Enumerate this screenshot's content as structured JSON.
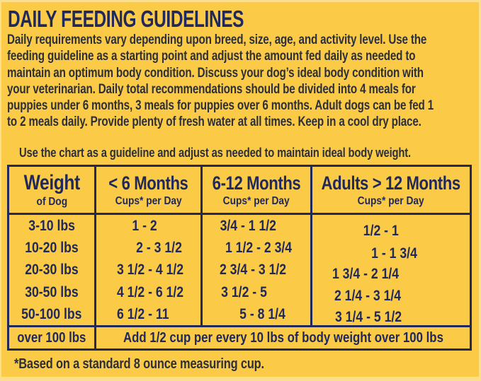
{
  "title": "DAILY FEEDING GUIDELINES",
  "intro": {
    "lines": [
      "Daily requirements vary depending upon breed, size, age, and activity level. Use the",
      "feeding guideline as a starting point and adjust the amount fed daily as needed to",
      "maintain an optimum body condition. Discuss your dog’s ideal body condition with",
      "your veterinarian. Daily total recommendations should be divided into 4 meals for",
      "puppies under 6 months, 3 meals for puppies over 6 months. Adult dogs can be fed 1",
      "to 2 meals daily. Provide plenty of fresh water at all times. Keep in a cool dry place."
    ]
  },
  "usage_note": "Use the chart as a guideline and adjust as needed to maintain ideal body weight.",
  "table": {
    "columns": [
      {
        "label": "Weight",
        "sublabel": "of Dog"
      },
      {
        "label": "< 6 Months",
        "sublabel": "Cups* per Day"
      },
      {
        "label": "6-12 Months",
        "sublabel": "Cups* per Day"
      },
      {
        "label": "Adults > 12 Months",
        "sublabel": "Cups* per Day"
      }
    ],
    "rows": [
      {
        "weight": "3-10 lbs",
        "under_6_months": "1 - 2",
        "months_6_12": "3/4 - 1 1/2",
        "adults_over_12": "1/2 - 1"
      },
      {
        "weight": "10-20 lbs",
        "under_6_months": "2 - 3 1/2",
        "months_6_12": "1 1/2 - 2 3/4",
        "adults_over_12": "1 - 1 3/4"
      },
      {
        "weight": "20-30 lbs",
        "under_6_months": "3 1/2 - 4 1/2",
        "months_6_12": "2 3/4 - 3 1/2",
        "adults_over_12": "1 3/4 - 2 1/4"
      },
      {
        "weight": "30-50 lbs",
        "under_6_months": "4 1/2 - 6 1/2",
        "months_6_12": "3 1/2 - 5",
        "adults_over_12": "2 1/4 - 3 1/4"
      },
      {
        "weight": "50-100 lbs",
        "under_6_months": "6 1/2 - 11",
        "months_6_12": "5 - 8 1/4",
        "adults_over_12": "3 1/4 - 5 1/2"
      }
    ],
    "footer_row": {
      "weight": "over 100 lbs",
      "note": "Add 1/2 cup per every 10 lbs of body weight over 100 lbs"
    }
  },
  "footnote": "*Based on a standard 8 ounce measuring cup.",
  "colors": {
    "background": "#fbcb48",
    "navy": "#20295a",
    "body_text": "#2d2f3a",
    "light_edge": "#fcdf8a"
  }
}
